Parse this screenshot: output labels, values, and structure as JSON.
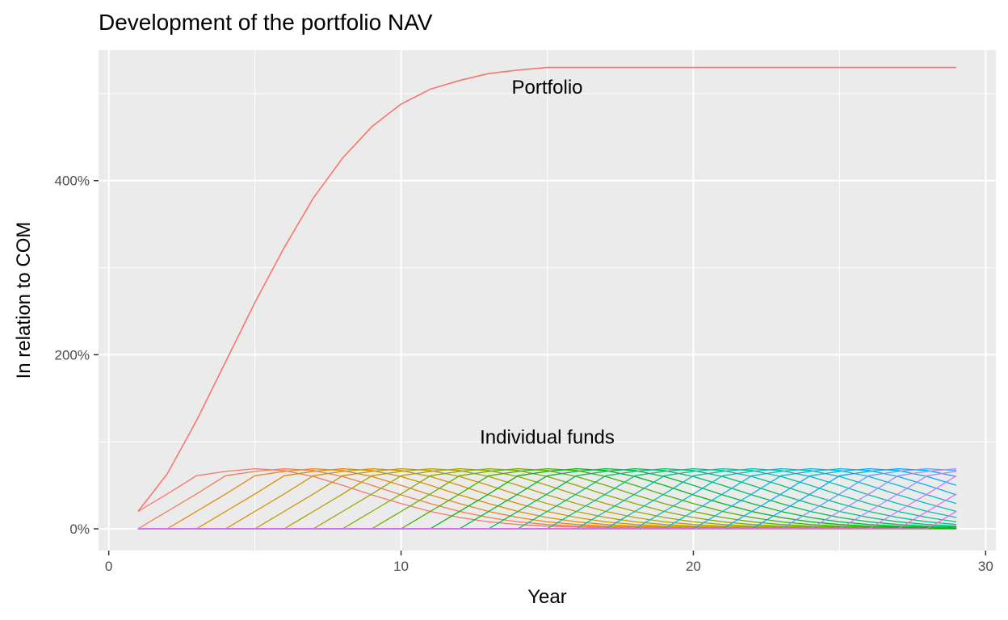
{
  "chart_data": {
    "type": "line",
    "title": "Development of the portfolio NAV",
    "xlabel": "Year",
    "ylabel": "In relation to COM",
    "xlim": [
      -0.35,
      30.35
    ],
    "ylim": [
      -0.25,
      5.5
    ],
    "x_ticks": [
      0,
      10,
      20,
      30
    ],
    "x_tick_labels": [
      "0",
      "10",
      "20",
      "30"
    ],
    "y_ticks": [
      0,
      2,
      4
    ],
    "y_tick_labels": [
      "0%",
      "200%",
      "400%"
    ],
    "grid": true,
    "background": "#ebebeb",
    "annotations": [
      {
        "text": "Portfolio",
        "x": 15,
        "y": 5.0
      },
      {
        "text": "Individual funds",
        "x": 15,
        "y": 0.98
      }
    ],
    "portfolio_series": {
      "color": "#f8766d",
      "x": [
        1,
        2,
        3,
        4,
        5,
        6,
        7,
        8,
        9,
        10,
        11,
        12,
        13,
        14,
        15,
        16,
        17,
        18,
        19,
        20,
        21,
        22,
        23,
        24,
        25,
        26,
        27,
        28,
        29
      ],
      "y": [
        0.2,
        0.63,
        1.24,
        1.92,
        2.6,
        3.23,
        3.8,
        4.26,
        4.62,
        4.88,
        5.05,
        5.15,
        5.23,
        5.27,
        5.3,
        5.3,
        5.3,
        5.3,
        5.3,
        5.3,
        5.3,
        5.3,
        5.3,
        5.3,
        5.3,
        5.3,
        5.3,
        5.3,
        5.3
      ]
    },
    "fund_profile": {
      "description_values_by_age": [
        0.2,
        0.4,
        0.61,
        0.66,
        0.69,
        0.67,
        0.6,
        0.5,
        0.39,
        0.29,
        0.2,
        0.13,
        0.08,
        0.05,
        0.03,
        0.02,
        0.012,
        0.008,
        0.005,
        0.003,
        0.002,
        0.001,
        0.0,
        0.0,
        0.0,
        0.0,
        0.0,
        0.0,
        0.0
      ]
    },
    "fund_count": 29,
    "fund_start_years": [
      1,
      2,
      3,
      4,
      5,
      6,
      7,
      8,
      9,
      10,
      11,
      12,
      13,
      14,
      15,
      16,
      17,
      18,
      19,
      20,
      21,
      22,
      23,
      24,
      25,
      26,
      27,
      28,
      29
    ],
    "fund_colors": [
      "#f8766d",
      "#f17e4f",
      "#e7861b",
      "#db8e00",
      "#cf9400",
      "#c09b00",
      "#b0a100",
      "#9da600",
      "#86ac00",
      "#6aaf00",
      "#44b400",
      "#00b70c",
      "#00ba38",
      "#00bc56",
      "#00be6f",
      "#00c085",
      "#00c19a",
      "#00c0af",
      "#00bfc4",
      "#00bcd8",
      "#00b7e8",
      "#00b0f6",
      "#00a8ff",
      "#619cff",
      "#9590ff",
      "#b983ff",
      "#d376ff",
      "#e76bf3",
      "#f564e3"
    ]
  }
}
